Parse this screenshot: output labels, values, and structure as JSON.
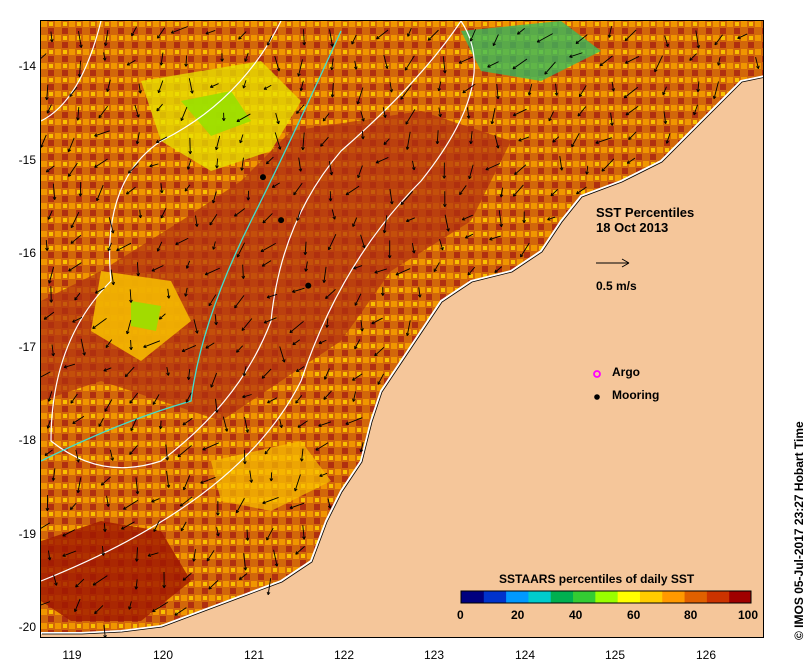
{
  "map": {
    "title": "SST Percentiles",
    "date": "18 Oct 2013",
    "scale_arrow_label": "0.5 m/s",
    "x_ticks": [
      "119",
      "120",
      "121",
      "122",
      "123",
      "124",
      "125",
      "126"
    ],
    "y_ticks": [
      "-14",
      "-15",
      "-16",
      "-17",
      "-18",
      "-19",
      "-20"
    ],
    "legend_markers": [
      {
        "label": "Argo",
        "color": "#ff00ff"
      },
      {
        "label": "Mooring",
        "color": "#000000"
      }
    ],
    "colorbar": {
      "title": "SSTAARS percentiles of daily SST",
      "tick_labels": [
        "0",
        "20",
        "40",
        "60",
        "80",
        "100"
      ],
      "colors": [
        "#00007f",
        "#0033cc",
        "#0099ff",
        "#00cccc",
        "#00b050",
        "#33cc33",
        "#99ff00",
        "#ffff00",
        "#ffcc00",
        "#ff9900",
        "#e06000",
        "#cc3300",
        "#a00000"
      ]
    },
    "palette": {
      "land": "#f5c69a",
      "sst_dark_red": "#b03010",
      "sst_orange_brown": "#d2670a",
      "sst_orange": "#f09600",
      "sst_yellow_orange": "#f8c000",
      "sst_yellow": "#e8e600",
      "sst_light_green": "#99e000",
      "sst_green": "#30c060",
      "contour_white": "#ffffff",
      "contour_cyan": "#40e0d0"
    },
    "credit": "IMOS 05-Jul-2017 23:27 Hobart Time",
    "moorings": [
      {
        "lon": 121.1,
        "lat": -15.22
      },
      {
        "lon": 121.3,
        "lat": -15.68
      },
      {
        "lon": 121.6,
        "lat": -16.38
      }
    ]
  }
}
